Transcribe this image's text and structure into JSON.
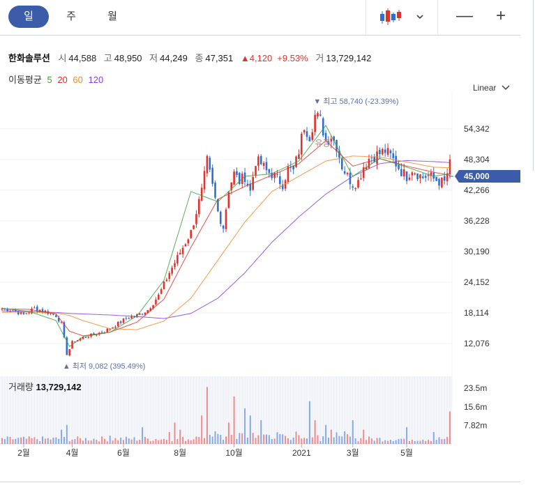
{
  "tabs": {
    "day": "일",
    "week": "주",
    "month": "월"
  },
  "toolbar": {
    "candle_icon": "candlestick-chart-icon",
    "zoom_out": "—",
    "zoom_in": "+"
  },
  "stock": {
    "name": "한화솔루션",
    "open_label": "시",
    "open": "44,588",
    "high_label": "고",
    "high": "48,950",
    "low_label": "저",
    "low": "44,249",
    "close_label": "종",
    "close": "47,351",
    "change": "▲4,120",
    "change_pct": "+9.53%",
    "volume_label": "거",
    "volume": "13,729,142"
  },
  "moving_avg": {
    "label": "이동평균",
    "periods": [
      "5",
      "20",
      "60",
      "120"
    ],
    "colors": [
      "#3aa13a",
      "#e0322e",
      "#f08a2c",
      "#8a3fd1"
    ]
  },
  "scale_mode": "Linear",
  "colors": {
    "up": "#e0322e",
    "down": "#2f6fd1",
    "accent": "#3b5ca8",
    "marker": "#5a70a8"
  },
  "chart_data": {
    "type": "candlestick",
    "y_ticks": [
      "54,342",
      "48,304",
      "42,266",
      "36,228",
      "30,190",
      "24,152",
      "18,114",
      "12,076"
    ],
    "y_tick_values": [
      54342,
      48304,
      42266,
      36228,
      30190,
      24152,
      18114,
      12076
    ],
    "ylim": [
      7000,
      60500
    ],
    "x_ticks": [
      "2월",
      "4월",
      "6월",
      "8월",
      "10월",
      "2021",
      "3월",
      "5월"
    ],
    "x_tick_index": [
      8,
      26,
      45,
      66,
      86,
      111,
      130,
      150
    ],
    "current_price_label": "45,000",
    "current_price": 45000,
    "high_marker": {
      "text": "▼ 최고 58,740 (-23.39%)",
      "value": 58740,
      "index": 118
    },
    "low_marker": {
      "text": "▲ 최저 9,082 (395.49%)",
      "value": 9082,
      "index": 24
    },
    "annotation": {
      "text": "유증",
      "index": 117
    },
    "price_index": [
      0,
      4,
      8,
      12,
      16,
      20,
      22,
      23,
      24,
      25,
      26,
      28,
      30,
      34,
      38,
      42,
      46,
      50,
      54,
      58,
      62,
      66,
      70,
      74,
      76,
      78,
      80,
      82,
      84,
      86,
      88,
      90,
      92,
      94,
      96,
      98,
      100,
      102,
      104,
      106,
      108,
      110,
      112,
      114,
      116,
      118,
      120,
      122,
      124,
      126,
      128,
      130,
      132,
      134,
      136,
      138,
      140,
      142,
      144,
      146,
      148,
      150,
      152,
      154,
      156,
      158,
      160,
      162,
      164,
      166
    ],
    "close": [
      19000,
      18600,
      17800,
      19000,
      18400,
      17600,
      16000,
      13000,
      10000,
      11000,
      12300,
      12800,
      13300,
      13800,
      14500,
      15700,
      17000,
      17600,
      18700,
      21500,
      26000,
      30000,
      34000,
      42000,
      48000,
      43000,
      38000,
      35000,
      42500,
      45500,
      44000,
      45000,
      42000,
      48000,
      47500,
      46000,
      45500,
      44500,
      43500,
      46500,
      46000,
      50000,
      55000,
      53000,
      57000,
      56000,
      52000,
      53000,
      51000,
      47000,
      45000,
      43500,
      44000,
      47000,
      48500,
      49000,
      49500,
      50000,
      49000,
      47500,
      46000,
      45000,
      46500,
      45500,
      44800,
      45200,
      44500,
      44000,
      43800,
      47351
    ],
    "ma_index": [
      0,
      10,
      20,
      25,
      30,
      40,
      50,
      60,
      70,
      80,
      90,
      100,
      110,
      120,
      130,
      140,
      150,
      160,
      166
    ],
    "ma5": [
      19000,
      18400,
      16600,
      11500,
      13400,
      14300,
      17500,
      24500,
      42000,
      40000,
      45000,
      45500,
      48000,
      55000,
      45000,
      48500,
      46800,
      45000,
      45500
    ],
    "ma20": [
      18900,
      18800,
      17900,
      14500,
      13600,
      14300,
      16300,
      20800,
      31000,
      40500,
      43000,
      45200,
      47500,
      52000,
      47000,
      48500,
      47000,
      45800,
      45200
    ],
    "ma60": [
      18200,
      18300,
      18100,
      17600,
      16600,
      15000,
      14800,
      16500,
      21000,
      28500,
      36000,
      42000,
      45000,
      48000,
      49000,
      48800,
      47800,
      46800,
      46700
    ],
    "ma120": [
      18500,
      18400,
      18200,
      18000,
      17900,
      17700,
      17400,
      17000,
      18000,
      21000,
      26000,
      32000,
      37000,
      41500,
      45000,
      47500,
      48100,
      47900,
      47700
    ],
    "volume_ticks": [
      "23.5m",
      "15.6m",
      "7.82m"
    ],
    "volume_tick_values": [
      23.5,
      15.6,
      7.82
    ],
    "volume_max": 28.5,
    "volume_spikes": {
      "index": [
        22,
        24,
        40,
        52,
        62,
        64,
        66,
        74,
        76,
        84,
        86,
        90,
        92,
        96,
        114,
        116,
        120,
        122,
        130,
        134,
        150,
        160,
        166
      ],
      "value": [
        6,
        8,
        3.5,
        7,
        5,
        9,
        6,
        12,
        24,
        9,
        20,
        15,
        12,
        10,
        18,
        10,
        8,
        6,
        10,
        6,
        7,
        5,
        13.7
      ]
    }
  },
  "volume_panel": {
    "label": "거래량",
    "value": "13,729,142"
  }
}
